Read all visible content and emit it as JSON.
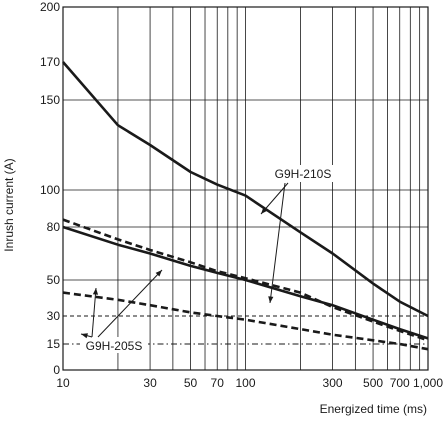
{
  "chart_data": {
    "type": "line",
    "title": "",
    "xlabel": "Energized time (ms)",
    "ylabel": "Inrush current (A)",
    "x_scale": "log",
    "xlim": [
      10,
      1000
    ],
    "ylim": [
      0,
      200
    ],
    "x_ticks": [
      {
        "value": 10,
        "label": "10"
      },
      {
        "value": 30,
        "label": "30"
      },
      {
        "value": 50,
        "label": "50"
      },
      {
        "value": 70,
        "label": "70"
      },
      {
        "value": 100,
        "label": "100"
      },
      {
        "value": 300,
        "label": "300"
      },
      {
        "value": 500,
        "label": "500"
      },
      {
        "value": 700,
        "label": "700"
      },
      {
        "value": 1000,
        "label": "1,000"
      }
    ],
    "y_ticks": [
      {
        "value": 0,
        "label": "0"
      },
      {
        "value": 15,
        "label": "15"
      },
      {
        "value": 30,
        "label": "30"
      },
      {
        "value": 50,
        "label": "50"
      },
      {
        "value": 80,
        "label": "80"
      },
      {
        "value": 100,
        "label": "100"
      },
      {
        "value": 150,
        "label": "150"
      },
      {
        "value": 170,
        "label": "170"
      },
      {
        "value": 200,
        "label": "200"
      }
    ],
    "grid": true,
    "reference_lines": [
      {
        "y": 30,
        "style": "dashed"
      },
      {
        "y": 15,
        "style": "dash-dot"
      }
    ],
    "series": [
      {
        "label": "G9H-210S",
        "style": "solid",
        "x": [
          10,
          20,
          30,
          50,
          70,
          100,
          200,
          300,
          500,
          700,
          1000
        ],
        "y": [
          170,
          136,
          125,
          110,
          103,
          97,
          77,
          65,
          48,
          38,
          30
        ]
      },
      {
        "label": "G9H-210S",
        "style": "dashed",
        "x": [
          10,
          20,
          30,
          50,
          70,
          100,
          200,
          300,
          500,
          700,
          1000
        ],
        "y": [
          84,
          73,
          67,
          60,
          55,
          51,
          43,
          35,
          27,
          22,
          17
        ]
      },
      {
        "label": "G9H-205S",
        "style": "solid",
        "x": [
          10,
          20,
          30,
          50,
          70,
          100,
          200,
          300,
          500,
          700,
          1000
        ],
        "y": [
          80,
          70,
          65,
          58,
          54,
          50,
          41,
          36,
          28,
          23,
          18
        ]
      },
      {
        "label": "G9H-205S",
        "style": "dashed",
        "x": [
          10,
          20,
          30,
          50,
          70,
          100,
          200,
          300,
          500,
          700,
          1000
        ],
        "y": [
          43,
          39,
          36,
          32,
          30,
          28,
          23,
          20,
          17,
          15,
          12
        ]
      }
    ],
    "annotations": [
      {
        "text": "G9H-210S"
      },
      {
        "text": "G9H-205S"
      }
    ]
  }
}
